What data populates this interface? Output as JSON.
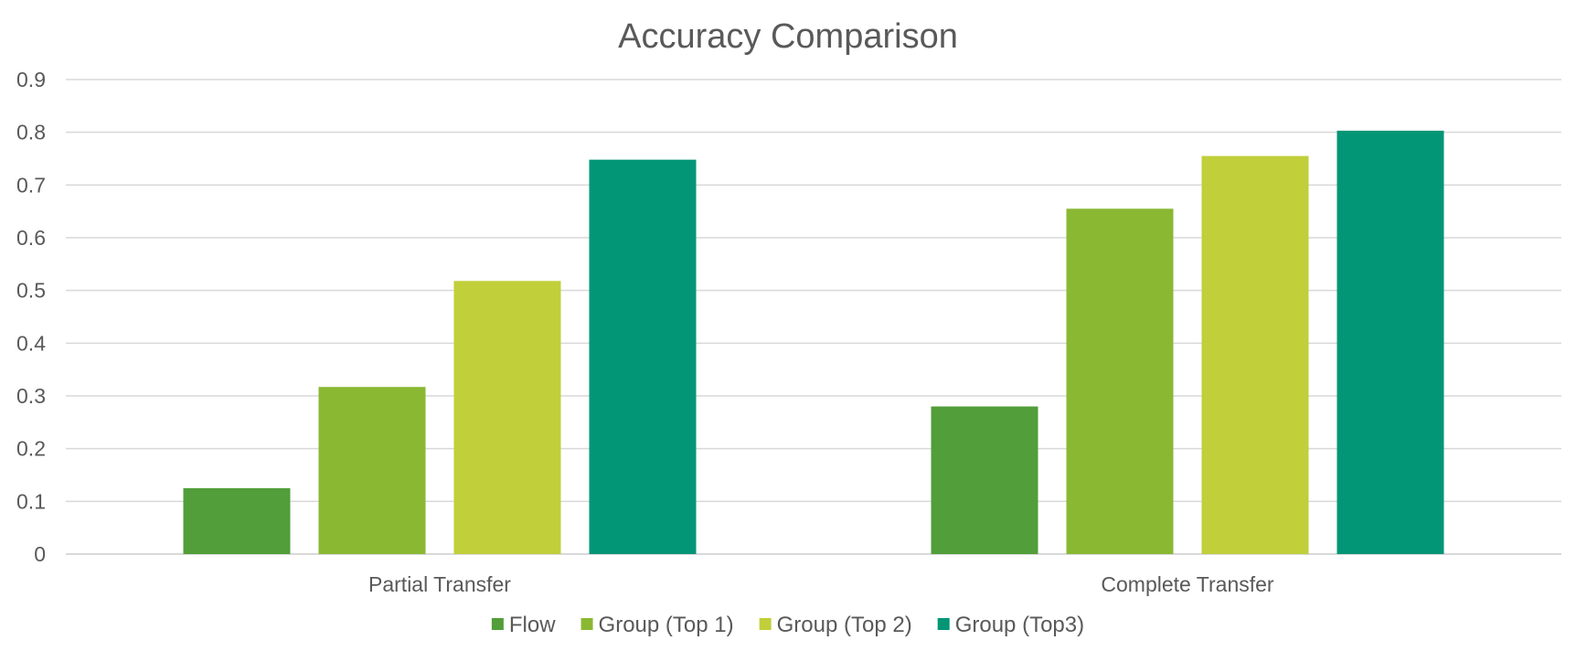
{
  "chart_data": {
    "type": "bar",
    "title": "Accuracy Comparison",
    "xlabel": "",
    "ylabel": "",
    "categories": [
      "Partial Transfer",
      "Complete Transfer"
    ],
    "ylim": [
      0,
      0.9
    ],
    "yticks": [
      0,
      0.1,
      0.2,
      0.3,
      0.4,
      0.5,
      0.6,
      0.7,
      0.8,
      0.9
    ],
    "ytick_labels": [
      "0",
      "0.1",
      "0.2",
      "0.3",
      "0.4",
      "0.5",
      "0.6",
      "0.7",
      "0.8",
      "0.9"
    ],
    "grid": true,
    "legend_position": "bottom",
    "series": [
      {
        "name": "Flow",
        "color": "#519e3a",
        "values": [
          0.125,
          0.28
        ]
      },
      {
        "name": "Group (Top 1)",
        "color": "#8ab833",
        "values": [
          0.317,
          0.655
        ]
      },
      {
        "name": "Group (Top 2)",
        "color": "#c0cf3a",
        "values": [
          0.518,
          0.755
        ]
      },
      {
        "name": "Group (Top3)",
        "color": "#029676",
        "values": [
          0.748,
          0.803
        ]
      }
    ]
  }
}
